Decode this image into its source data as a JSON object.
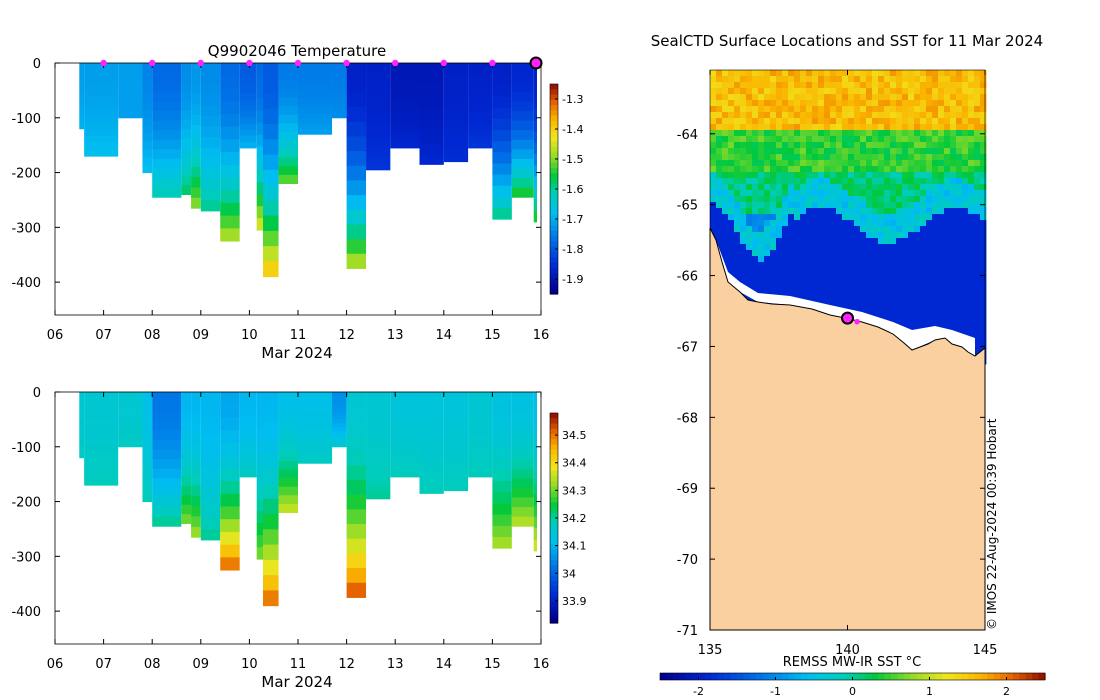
{
  "chart_data": [
    {
      "type": "heatmap",
      "title": "Q9902046  Temperature",
      "xlabel": "Mar 2024",
      "ylabel": "",
      "x_ticks": [
        "06",
        "07",
        "08",
        "09",
        "10",
        "11",
        "12",
        "13",
        "14",
        "15",
        "16"
      ],
      "xlim": [
        6,
        16
      ],
      "y_ticks": [
        "0",
        "-100",
        "-200",
        "-300",
        "-400"
      ],
      "ylim": [
        -460,
        0
      ],
      "colorbar": {
        "ticks": [
          "-1.3",
          "-1.4",
          "-1.5",
          "-1.6",
          "-1.7",
          "-1.8",
          "-1.9"
        ],
        "range": [
          -1.95,
          -1.25
        ]
      },
      "surfacing_markers_day": [
        7,
        8,
        9,
        10,
        11,
        12,
        13,
        14,
        15
      ],
      "current_position_day": 16,
      "profiles": [
        {
          "x": 6.5,
          "depth": 120,
          "surface": -1.72,
          "bottom": -1.7
        },
        {
          "x": 6.6,
          "depth": 170,
          "surface": -1.72,
          "bottom": -1.68
        },
        {
          "x": 7.3,
          "depth": 100,
          "surface": -1.72,
          "bottom": -1.72
        },
        {
          "x": 7.8,
          "depth": 200,
          "surface": -1.75,
          "bottom": -1.68
        },
        {
          "x": 8.0,
          "depth": 245,
          "surface": -1.78,
          "bottom": -1.62
        },
        {
          "x": 8.6,
          "depth": 240,
          "surface": -1.74,
          "bottom": -1.58
        },
        {
          "x": 8.8,
          "depth": 265,
          "surface": -1.73,
          "bottom": -1.5
        },
        {
          "x": 9.0,
          "depth": 270,
          "surface": -1.74,
          "bottom": -1.6
        },
        {
          "x": 9.4,
          "depth": 325,
          "surface": -1.78,
          "bottom": -1.48
        },
        {
          "x": 9.8,
          "depth": 155,
          "surface": -1.8,
          "bottom": -1.7
        },
        {
          "x": 10.15,
          "depth": 305,
          "surface": -1.78,
          "bottom": -1.45
        },
        {
          "x": 10.28,
          "depth": 390,
          "surface": -1.8,
          "bottom": -1.4
        },
        {
          "x": 10.6,
          "depth": 220,
          "surface": -1.76,
          "bottom": -1.52
        },
        {
          "x": 11.0,
          "depth": 130,
          "surface": -1.76,
          "bottom": -1.72
        },
        {
          "x": 11.7,
          "depth": 100,
          "surface": -1.76,
          "bottom": -1.74
        },
        {
          "x": 12.0,
          "depth": 375,
          "surface": -1.88,
          "bottom": -1.48
        },
        {
          "x": 12.4,
          "depth": 195,
          "surface": -1.88,
          "bottom": -1.85
        },
        {
          "x": 12.9,
          "depth": 155,
          "surface": -1.9,
          "bottom": -1.87
        },
        {
          "x": 13.5,
          "depth": 185,
          "surface": -1.9,
          "bottom": -1.87
        },
        {
          "x": 14.0,
          "depth": 180,
          "surface": -1.88,
          "bottom": -1.86
        },
        {
          "x": 14.5,
          "depth": 155,
          "surface": -1.88,
          "bottom": -1.85
        },
        {
          "x": 15.0,
          "depth": 285,
          "surface": -1.88,
          "bottom": -1.6
        },
        {
          "x": 15.4,
          "depth": 245,
          "surface": -1.87,
          "bottom": -1.55
        },
        {
          "x": 15.85,
          "depth": 290,
          "surface": -1.88,
          "bottom": -1.55
        }
      ]
    },
    {
      "type": "heatmap",
      "title": "",
      "xlabel": "Mar 2024",
      "ylabel": "",
      "x_ticks": [
        "06",
        "07",
        "08",
        "09",
        "10",
        "11",
        "12",
        "13",
        "14",
        "15",
        "16"
      ],
      "xlim": [
        6,
        16
      ],
      "y_ticks": [
        "0",
        "-100",
        "-200",
        "-300",
        "-400"
      ],
      "ylim": [
        -460,
        0
      ],
      "colorbar": {
        "ticks": [
          "34.5",
          "34.4",
          "34.3",
          "34.2",
          "34.1",
          "34",
          "33.9"
        ],
        "range": [
          33.82,
          34.58
        ]
      },
      "profiles": [
        {
          "x": 6.5,
          "depth": 120,
          "surface": 34.15,
          "bottom": 34.17
        },
        {
          "x": 6.6,
          "depth": 170,
          "surface": 34.15,
          "bottom": 34.18
        },
        {
          "x": 7.3,
          "depth": 100,
          "surface": 34.15,
          "bottom": 34.17
        },
        {
          "x": 7.8,
          "depth": 200,
          "surface": 34.12,
          "bottom": 34.18
        },
        {
          "x": 8.0,
          "depth": 245,
          "surface": 34.02,
          "bottom": 34.2
        },
        {
          "x": 8.6,
          "depth": 240,
          "surface": 34.1,
          "bottom": 34.3
        },
        {
          "x": 8.8,
          "depth": 265,
          "surface": 34.1,
          "bottom": 34.32
        },
        {
          "x": 9.0,
          "depth": 270,
          "surface": 34.1,
          "bottom": 34.2
        },
        {
          "x": 9.4,
          "depth": 325,
          "surface": 34.08,
          "bottom": 34.5
        },
        {
          "x": 9.8,
          "depth": 155,
          "surface": 34.1,
          "bottom": 34.17
        },
        {
          "x": 10.15,
          "depth": 305,
          "surface": 34.1,
          "bottom": 34.3
        },
        {
          "x": 10.28,
          "depth": 390,
          "surface": 34.1,
          "bottom": 34.5
        },
        {
          "x": 10.6,
          "depth": 220,
          "surface": 34.12,
          "bottom": 34.35
        },
        {
          "x": 11.0,
          "depth": 130,
          "surface": 34.12,
          "bottom": 34.17
        },
        {
          "x": 11.7,
          "depth": 100,
          "surface": 34.05,
          "bottom": 34.15
        },
        {
          "x": 12.0,
          "depth": 375,
          "surface": 34.15,
          "bottom": 34.52
        },
        {
          "x": 12.4,
          "depth": 195,
          "surface": 34.15,
          "bottom": 34.2
        },
        {
          "x": 12.9,
          "depth": 155,
          "surface": 34.14,
          "bottom": 34.18
        },
        {
          "x": 13.5,
          "depth": 185,
          "surface": 34.14,
          "bottom": 34.18
        },
        {
          "x": 14.0,
          "depth": 180,
          "surface": 34.14,
          "bottom": 34.18
        },
        {
          "x": 14.5,
          "depth": 155,
          "surface": 34.15,
          "bottom": 34.18
        },
        {
          "x": 15.0,
          "depth": 285,
          "surface": 34.13,
          "bottom": 34.33
        },
        {
          "x": 15.4,
          "depth": 245,
          "surface": 34.13,
          "bottom": 34.34
        },
        {
          "x": 15.85,
          "depth": 290,
          "surface": 34.12,
          "bottom": 34.36
        }
      ]
    },
    {
      "type": "heatmap",
      "title": "SealCTD Surface Locations and SST for 11 Mar 2024",
      "xlabel": "",
      "ylabel": "",
      "x_ticks": [
        "135",
        "140",
        "145"
      ],
      "xlim": [
        135,
        145
      ],
      "y_ticks": [
        "-64",
        "-65",
        "-66",
        "-67",
        "-68",
        "-69",
        "-70",
        "-71"
      ],
      "ylim": [
        -71,
        -63.1
      ],
      "colorbar": {
        "label": "REMSS MW-IR SST °C",
        "ticks": [
          "-2",
          "-1",
          "0",
          "1",
          "2"
        ],
        "range": [
          -2.5,
          2.5
        ]
      },
      "sst_bands": [
        {
          "lat_from": -63.1,
          "lat_to": -63.9,
          "sst": 1.6
        },
        {
          "lat_from": -63.9,
          "lat_to": -64.5,
          "sst": 0.45
        },
        {
          "lat_from": -64.5,
          "lat_to": -65.1,
          "sst": 0.1
        },
        {
          "lat_from": -65.1,
          "lat_to": -65.5,
          "sst": -0.9
        },
        {
          "lat_from": -65.5,
          "lat_to": -67.1,
          "sst": -1.9
        }
      ],
      "seal_surface_points": [
        {
          "lon": 140.0,
          "lat": -66.6,
          "current": true
        },
        {
          "lon": 140.35,
          "lat": -66.65,
          "current": false
        }
      ],
      "credit": "© IMOS 22-Aug-2024 00:39 Hobart"
    }
  ],
  "colors": {
    "land": "#fbd0a1",
    "coast": "#000000",
    "marker": "#ff22ff"
  }
}
